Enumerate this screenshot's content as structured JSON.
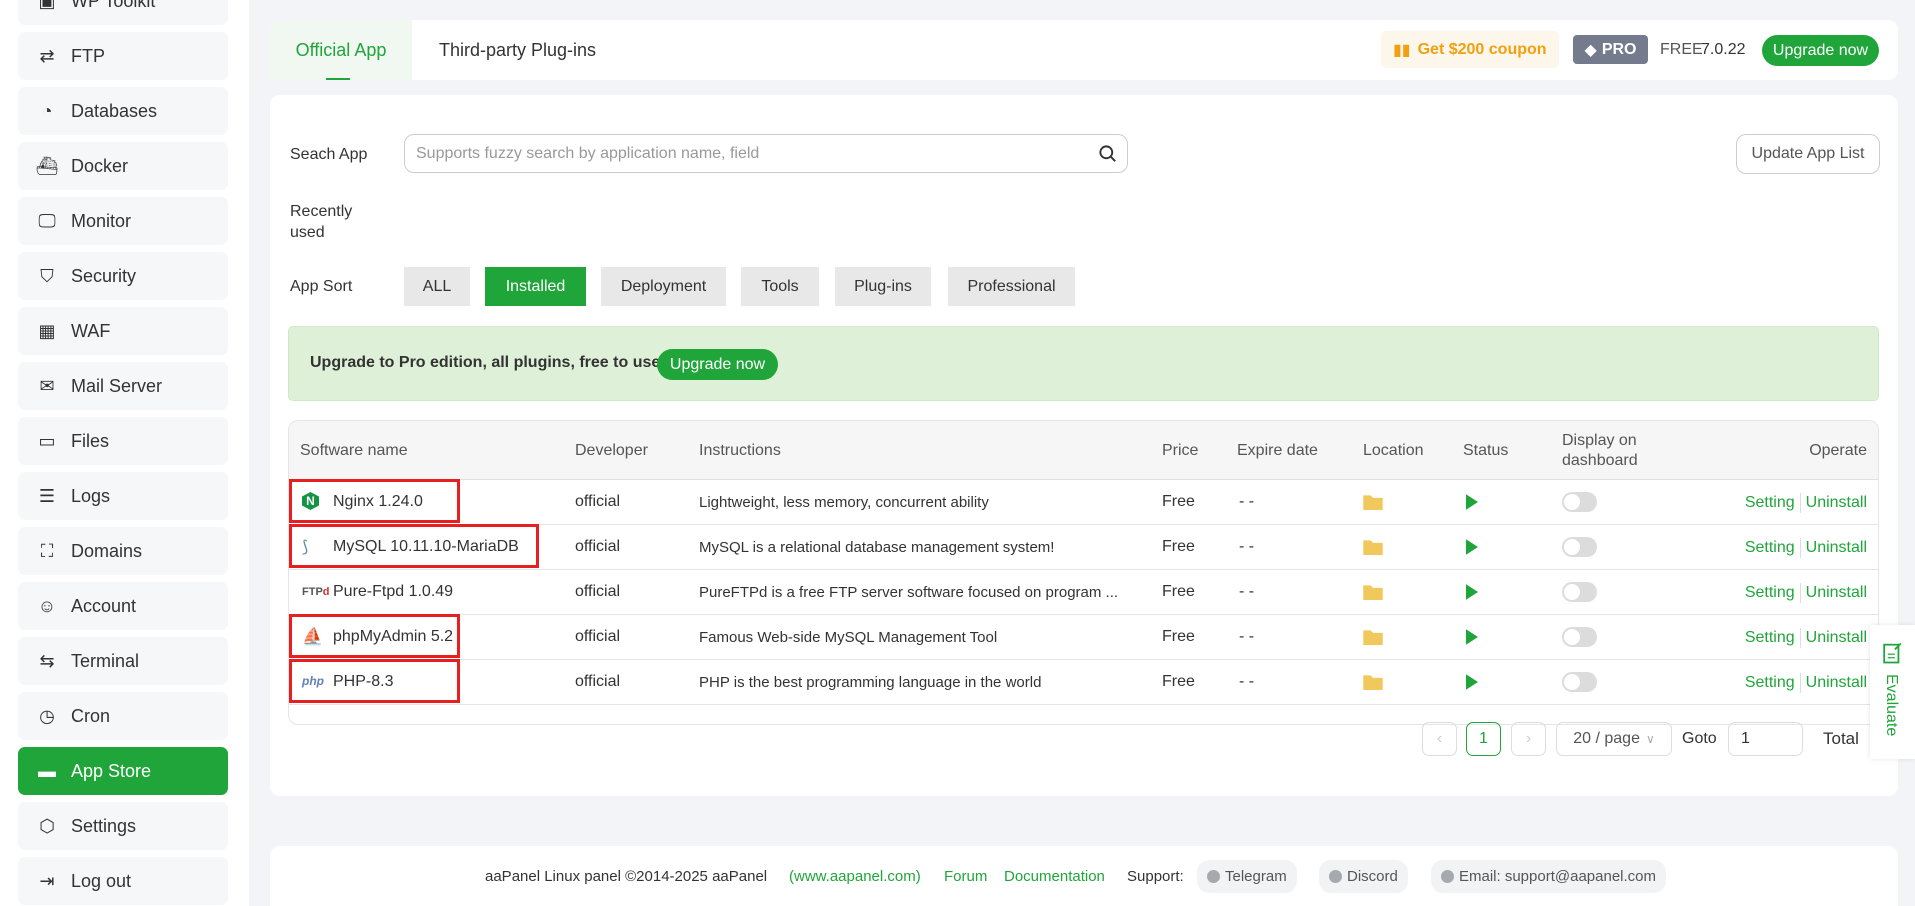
{
  "sidebar": {
    "items": [
      {
        "label": "WP Toolkit",
        "icon": "wp-toolkit-icon"
      },
      {
        "label": "FTP",
        "icon": "transfer-arrows-icon"
      },
      {
        "label": "Databases",
        "icon": "pie-chart-icon"
      },
      {
        "label": "Docker",
        "icon": "docker-icon"
      },
      {
        "label": "Monitor",
        "icon": "monitor-icon"
      },
      {
        "label": "Security",
        "icon": "shield-icon"
      },
      {
        "label": "WAF",
        "icon": "firewall-icon"
      },
      {
        "label": "Mail Server",
        "icon": "mail-icon"
      },
      {
        "label": "Files",
        "icon": "folder-icon"
      },
      {
        "label": "Logs",
        "icon": "log-icon"
      },
      {
        "label": "Domains",
        "icon": "domains-icon"
      },
      {
        "label": "Account",
        "icon": "user-icon"
      },
      {
        "label": "Terminal",
        "icon": "terminal-icon"
      },
      {
        "label": "Cron",
        "icon": "clock-icon"
      },
      {
        "label": "App Store",
        "icon": "store-icon",
        "active": true
      },
      {
        "label": "Settings",
        "icon": "gear-icon"
      },
      {
        "label": "Log out",
        "icon": "logout-icon"
      }
    ]
  },
  "header": {
    "tabs": [
      {
        "label": "Official App",
        "active": true
      },
      {
        "label": "Third-party Plug-ins"
      }
    ],
    "coupon": "Get $200 coupon",
    "pro": "PRO",
    "edition": "FREE",
    "version": "7.0.22",
    "upgrade": "Upgrade now"
  },
  "search": {
    "label": "Seach App",
    "placeholder": "Supports fuzzy search by application name, field",
    "update_button": "Update App List"
  },
  "recent_label": "Recently used",
  "sort": {
    "label": "App Sort",
    "options": [
      "ALL",
      "Installed",
      "Deployment",
      "Tools",
      "Plug-ins",
      "Professional"
    ],
    "selected": "Installed"
  },
  "banner": {
    "text": "Upgrade to Pro edition, all plugins, free to use!",
    "button": "Upgrade now"
  },
  "table": {
    "columns": [
      "Software name",
      "Developer",
      "Instructions",
      "Price",
      "Expire date",
      "Location",
      "Status",
      "Display on dashboard",
      "Operate"
    ],
    "rows": [
      {
        "name": "Nginx 1.24.0",
        "icon": "nginx-icon",
        "developer": "official",
        "instructions": "Lightweight, less memory, concurrent ability",
        "price": "Free",
        "expire": "- -",
        "highlighted": true
      },
      {
        "name": "MySQL 10.11.10-MariaDB",
        "icon": "mysql-icon",
        "developer": "official",
        "instructions": "MySQL is a relational database management system!",
        "price": "Free",
        "expire": "- -",
        "highlighted": true
      },
      {
        "name": "Pure-Ftpd 1.0.49",
        "icon": "ftp-icon",
        "developer": "official",
        "instructions": "PureFTPd is a free FTP server software focused on program ...",
        "price": "Free",
        "expire": "- -",
        "highlighted": false
      },
      {
        "name": "phpMyAdmin 5.2",
        "icon": "phpmyadmin-icon",
        "developer": "official",
        "instructions": "Famous Web-side MySQL Management Tool",
        "price": "Free",
        "expire": "- -",
        "highlighted": true
      },
      {
        "name": "PHP-8.3",
        "icon": "php-icon",
        "developer": "official",
        "instructions": "PHP is the best programming language in the world",
        "price": "Free",
        "expire": "- -",
        "highlighted": true
      }
    ],
    "actions": [
      "Setting",
      "Uninstall"
    ]
  },
  "pagination": {
    "current": "1",
    "page_size": "20 / page",
    "goto_label": "Goto",
    "goto_value": "1",
    "total_label": "Total"
  },
  "footer": {
    "copyright": "aaPanel Linux panel ©2014-2025 aaPanel",
    "site": "(www.aapanel.com)",
    "forum": "Forum",
    "docs": "Documentation",
    "support": "Support:",
    "telegram": "Telegram",
    "discord": "Discord",
    "email": "Email: support@aapanel.com"
  },
  "evaluate": "Evaluate",
  "colors": {
    "accent": "#20a53a",
    "highlight": "#e62020",
    "coupon": "#f0a010"
  }
}
